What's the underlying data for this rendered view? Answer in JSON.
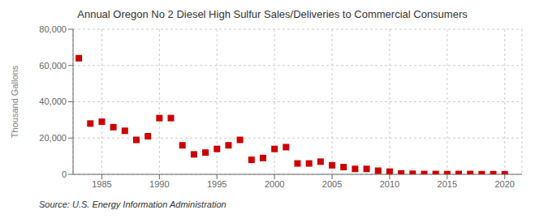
{
  "chart_data": {
    "type": "scatter",
    "title": "Annual Oregon No 2 Diesel High Sulfur Sales/Deliveries to Commercial Consumers",
    "ylabel": "Thousand Gallons",
    "annotation": "Source: U.S. Energy Information Administration",
    "color": "#cc0000",
    "marker": "square",
    "grid": true,
    "xlim": [
      1982.5,
      2021.5
    ],
    "xticks": [
      1985,
      1990,
      1995,
      2000,
      2005,
      2010,
      2015,
      2020
    ],
    "ylim": [
      0,
      80000
    ],
    "yticks": [
      0,
      {
        "value": 20000,
        "label": "20,000"
      },
      {
        "value": 40000,
        "label": "40,000"
      },
      {
        "value": 60000,
        "label": "60,000"
      },
      {
        "value": 80000,
        "label": "80,000"
      }
    ],
    "x": [
      1983,
      1984,
      1985,
      1986,
      1987,
      1988,
      1989,
      1990,
      1991,
      1992,
      1993,
      1994,
      1995,
      1996,
      1997,
      1998,
      1999,
      2000,
      2001,
      2002,
      2003,
      2004,
      2005,
      2006,
      2007,
      2008,
      2009,
      2010,
      2011,
      2012,
      2013,
      2014,
      2015,
      2016,
      2017,
      2018,
      2019,
      2020
    ],
    "values": [
      64000,
      28000,
      29000,
      26000,
      24000,
      19000,
      21000,
      31000,
      31000,
      16000,
      11000,
      12000,
      14000,
      16000,
      19000,
      8000,
      9000,
      14000,
      15000,
      6000,
      6000,
      7000,
      5000,
      4000,
      3000,
      3000,
      2000,
      1500,
      500,
      300,
      200,
      200,
      100,
      200,
      200,
      100,
      100,
      50
    ]
  }
}
